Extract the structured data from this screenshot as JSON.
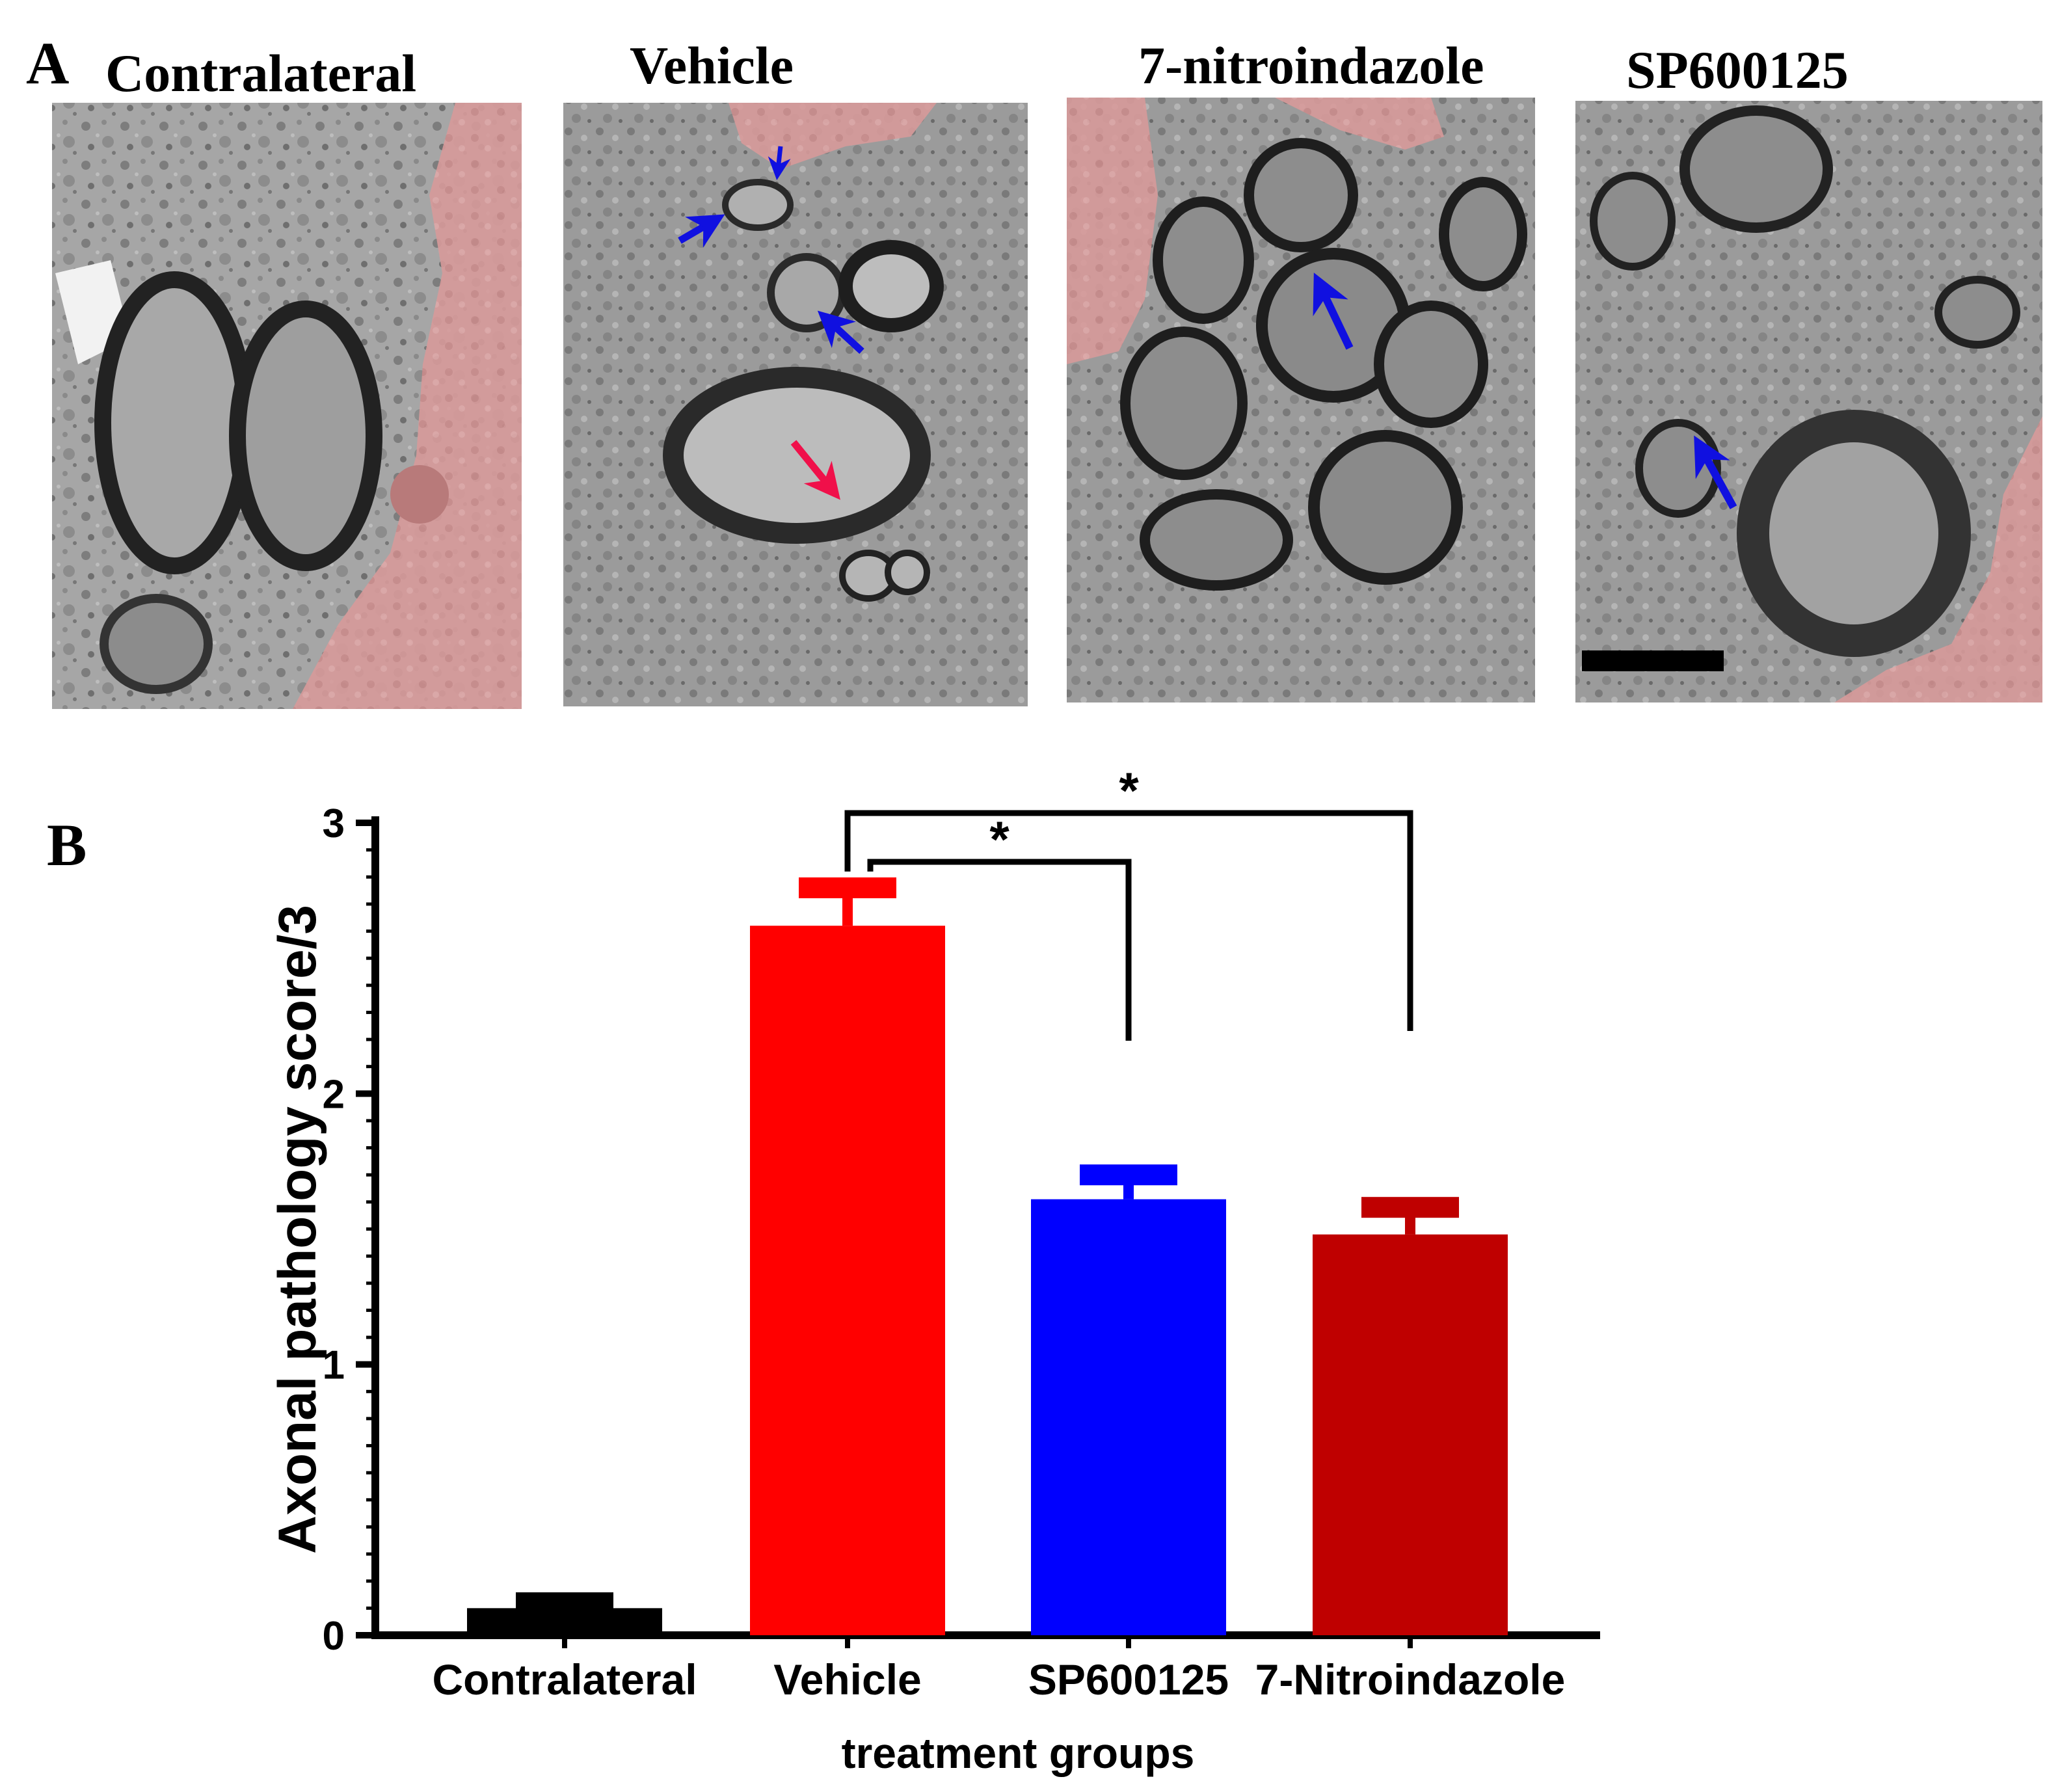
{
  "panel_a": {
    "letter": "A",
    "panels": [
      {
        "title": "Contralateral",
        "arrows": [],
        "scale_bar": false
      },
      {
        "title": "Vehicle",
        "arrows": [
          "blue",
          "blue",
          "blue",
          "red"
        ],
        "scale_bar": false
      },
      {
        "title": "7-nitroindazole",
        "arrows": [
          "blue"
        ],
        "scale_bar": false
      },
      {
        "title": "SP600125",
        "arrows": [
          "blue"
        ],
        "scale_bar": true
      }
    ],
    "colors": {
      "highlight": "#d98585",
      "arrow_blue": "#1010e0",
      "arrow_red": "#f0104a"
    }
  },
  "panel_b": {
    "letter": "B"
  },
  "chart_data": {
    "type": "bar",
    "title": "",
    "xlabel": "treatment groups",
    "ylabel": "Axonal pathology score/3",
    "ylim": [
      0,
      3
    ],
    "yticks": [
      0,
      1,
      2,
      3
    ],
    "categories": [
      "Contralateral",
      "Vehicle",
      "SP600125",
      "7-Nitroindazole"
    ],
    "values": [
      0.1,
      2.62,
      1.61,
      1.48
    ],
    "errors": [
      0.02,
      0.14,
      0.09,
      0.1
    ],
    "colors": [
      "#000000",
      "#ff0000",
      "#0000ff",
      "#bf0000"
    ],
    "significance": [
      {
        "from": "Vehicle",
        "to": "SP600125",
        "label": "*"
      },
      {
        "from": "Vehicle",
        "to": "7-Nitroindazole",
        "label": "*"
      }
    ],
    "grid": false,
    "legend": "none"
  }
}
